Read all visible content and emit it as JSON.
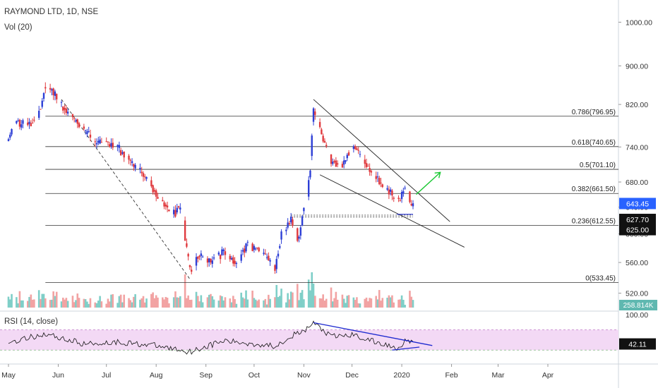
{
  "header": {
    "symbol_line": "RAYMOND LTD, 1D, NSE",
    "volume_label": "Vol (20)"
  },
  "rsi_panel": {
    "label": "RSI (14, close)"
  },
  "colors": {
    "up": "#2d3fd6",
    "down": "#e03a3e",
    "vol_up": "#7fcfc8",
    "vol_down": "#f2a3a3",
    "rsi_band": "#f3d9f5",
    "channel": "#222222",
    "trend_blue": "#1f2bd0",
    "arrow_green": "#19c832",
    "price_badge": "#2962ff"
  },
  "chart_data": [
    {
      "type": "candlestick",
      "title": "RAYMOND LTD, 1D, NSE",
      "x_tick_labels": [
        "May",
        "Jun",
        "Jul",
        "Aug",
        "Sep",
        "Oct",
        "Nov",
        "Dec",
        "2020",
        "Feb",
        "Mar",
        "Apr"
      ],
      "y_ticks": [
        520,
        560,
        600,
        640,
        680,
        740,
        820,
        900,
        1000
      ],
      "y_tick_labels": [
        "520.00",
        "560.00",
        "600.00",
        "640.00",
        "680.00",
        "740.00",
        "820.00",
        "900.00",
        "1000.00"
      ],
      "y_scale": "log",
      "ylim": [
        498,
        1055
      ],
      "fib_levels": [
        {
          "ratio": "0.786",
          "value": 796.95,
          "label": "0.786(796.95)"
        },
        {
          "ratio": "0.618",
          "value": 740.65,
          "label": "0.618(740.65)"
        },
        {
          "ratio": "0.5",
          "value": 701.1,
          "label": "0.5(701.10)"
        },
        {
          "ratio": "0.382",
          "value": 661.5,
          "label": "0.382(661.50)"
        },
        {
          "ratio": "0.236",
          "value": 612.55,
          "label": "0.236(612.55)"
        },
        {
          "ratio": "0",
          "value": 533.45,
          "label": "0(533.45)"
        }
      ],
      "price_markers": [
        {
          "label": "643.45",
          "value": 643.45,
          "style": "last"
        },
        {
          "label": "627.70",
          "value": 627.7,
          "style": "line"
        },
        {
          "label": "625.00",
          "value": 625.0,
          "style": "line"
        }
      ],
      "volume_marker": "258.814K",
      "price_path": [
        [
          "2019-05-01",
          755
        ],
        [
          "2019-05-06",
          790
        ],
        [
          "2019-05-13",
          775
        ],
        [
          "2019-05-20",
          800
        ],
        [
          "2019-05-24",
          860
        ],
        [
          "2019-05-28",
          850
        ],
        [
          "2019-06-03",
          820
        ],
        [
          "2019-06-10",
          795
        ],
        [
          "2019-06-17",
          770
        ],
        [
          "2019-06-24",
          748
        ],
        [
          "2019-07-01",
          745
        ],
        [
          "2019-07-08",
          738
        ],
        [
          "2019-07-15",
          720
        ],
        [
          "2019-07-22",
          700
        ],
        [
          "2019-07-29",
          672
        ],
        [
          "2019-08-05",
          650
        ],
        [
          "2019-08-12",
          630
        ],
        [
          "2019-08-16",
          640
        ],
        [
          "2019-08-22",
          548
        ],
        [
          "2019-08-28",
          572
        ],
        [
          "2019-09-05",
          560
        ],
        [
          "2019-09-12",
          575
        ],
        [
          "2019-09-20",
          560
        ],
        [
          "2019-09-27",
          585
        ],
        [
          "2019-10-03",
          575
        ],
        [
          "2019-10-10",
          565
        ],
        [
          "2019-10-14",
          545
        ],
        [
          "2019-10-18",
          600
        ],
        [
          "2019-10-24",
          620
        ],
        [
          "2019-10-29",
          590
        ],
        [
          "2019-11-01",
          640
        ],
        [
          "2019-11-05",
          700
        ],
        [
          "2019-11-07",
          818
        ],
        [
          "2019-11-12",
          760
        ],
        [
          "2019-11-18",
          715
        ],
        [
          "2019-11-25",
          710
        ],
        [
          "2019-12-02",
          745
        ],
        [
          "2019-12-09",
          708
        ],
        [
          "2019-12-16",
          690
        ],
        [
          "2019-12-23",
          665
        ],
        [
          "2019-12-30",
          650
        ],
        [
          "2020-01-03",
          668
        ],
        [
          "2020-01-08",
          643.45
        ]
      ]
    },
    {
      "type": "line",
      "title": "RSI (14, close)",
      "y_tick_labels": [
        "100.00"
      ],
      "ylim": [
        0,
        100
      ],
      "bands": [
        30,
        70
      ],
      "last_value_label": "42.11",
      "rsi_path": [
        [
          "2019-05-01",
          45
        ],
        [
          "2019-05-24",
          62
        ],
        [
          "2019-06-17",
          42
        ],
        [
          "2019-07-08",
          46
        ],
        [
          "2019-07-29",
          40
        ],
        [
          "2019-08-22",
          27
        ],
        [
          "2019-09-12",
          48
        ],
        [
          "2019-10-14",
          38
        ],
        [
          "2019-10-24",
          58
        ],
        [
          "2019-11-01",
          66
        ],
        [
          "2019-11-07",
          84
        ],
        [
          "2019-11-18",
          56
        ],
        [
          "2019-12-02",
          60
        ],
        [
          "2019-12-16",
          45
        ],
        [
          "2019-12-30",
          34
        ],
        [
          "2020-01-03",
          50
        ],
        [
          "2020-01-08",
          42.11
        ]
      ]
    }
  ]
}
